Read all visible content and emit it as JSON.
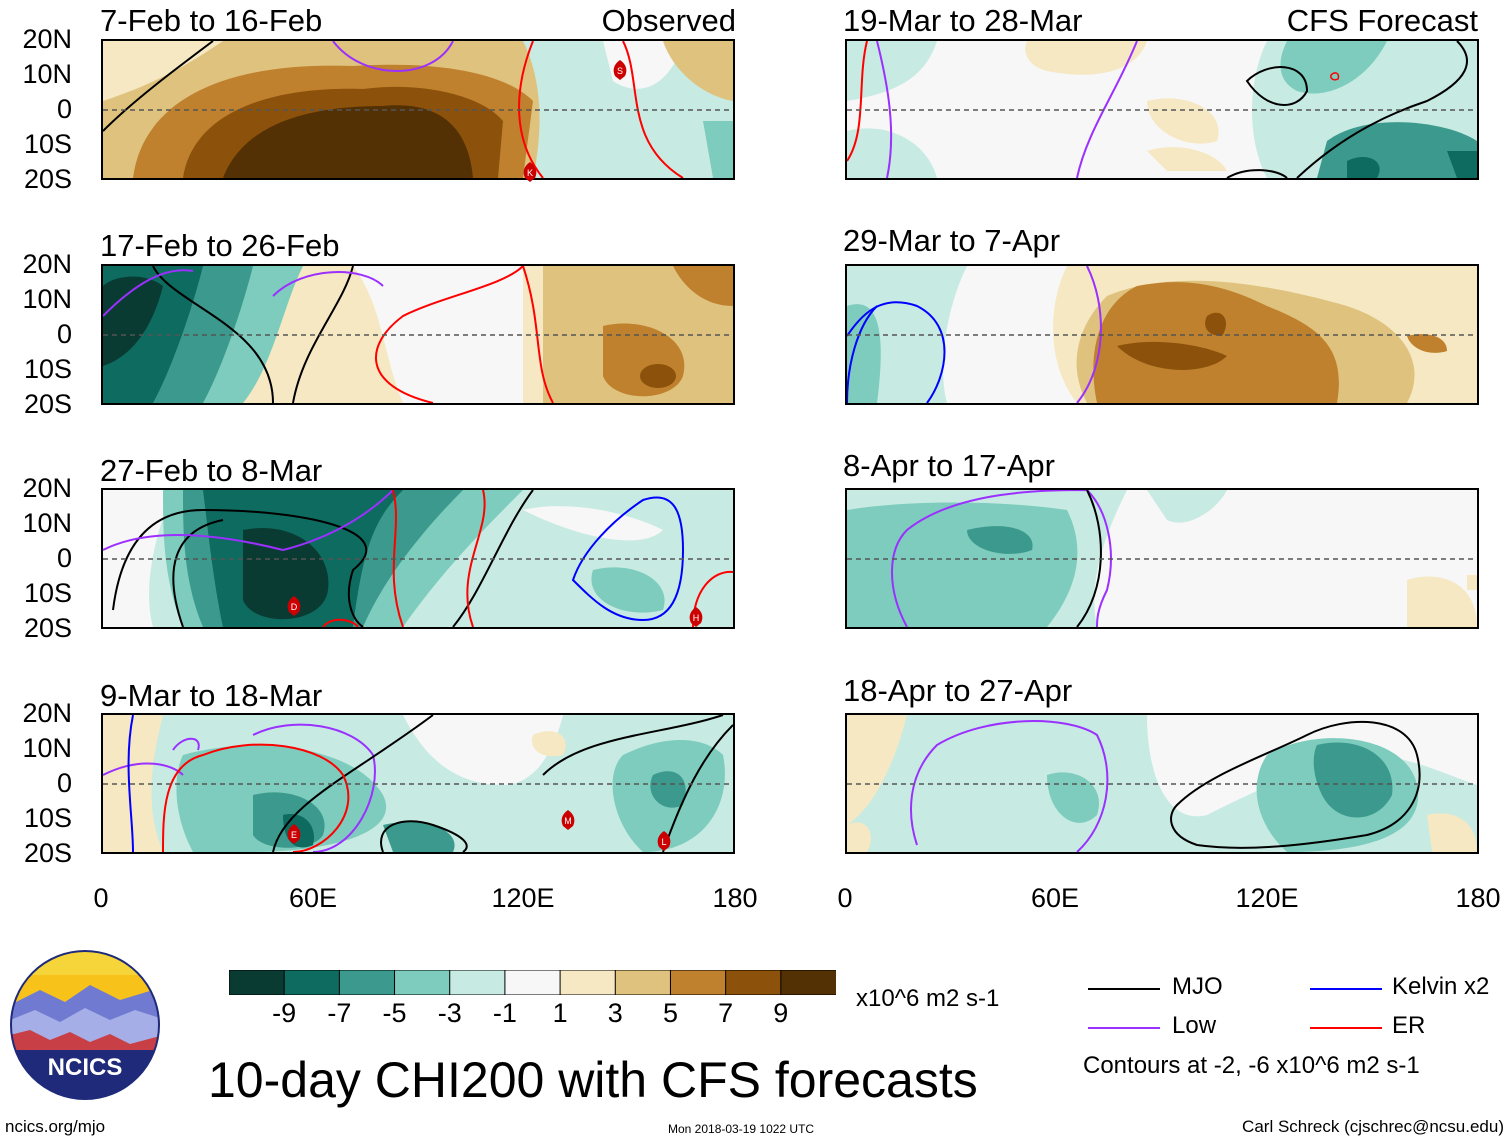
{
  "panels": [
    {
      "title": "7-Feb to 16-Feb",
      "tag": "Observed"
    },
    {
      "title": "17-Feb to 26-Feb",
      "tag": ""
    },
    {
      "title": "27-Feb to 8-Mar",
      "tag": ""
    },
    {
      "title": "9-Mar to 18-Mar",
      "tag": ""
    },
    {
      "title": "19-Mar to 28-Mar",
      "tag": "CFS Forecast"
    },
    {
      "title": "29-Mar to 7-Apr",
      "tag": ""
    },
    {
      "title": "8-Apr to 17-Apr",
      "tag": ""
    },
    {
      "title": "18-Apr to 27-Apr",
      "tag": ""
    }
  ],
  "lat_labels": [
    "20N",
    "10N",
    "0",
    "10S",
    "20S"
  ],
  "lon_labels": [
    "0",
    "60E",
    "120E",
    "180"
  ],
  "colorbar": {
    "colors": [
      "#0a3b33",
      "#0d6b60",
      "#3b9a8d",
      "#7dccbd",
      "#c7ebe2",
      "#f7f7f7",
      "#f6e8c3",
      "#dfc27d",
      "#bf812d",
      "#8c510a",
      "#543005"
    ],
    "labels": [
      "-9",
      "-7",
      "-5",
      "-3",
      "-1",
      "1",
      "3",
      "5",
      "7",
      "9"
    ],
    "units": "x10^6 m2 s-1"
  },
  "legend": {
    "items": [
      {
        "label": "MJO",
        "color": "#000000"
      },
      {
        "label": "Kelvin x2",
        "color": "#0000ff"
      },
      {
        "label": "Low",
        "color": "#9b30ff"
      },
      {
        "label": "ER",
        "color": "#ff0000"
      }
    ],
    "contours_note": "Contours at -2, -6 x10^6 m2 s-1"
  },
  "storm_markers": [
    {
      "panel": 0,
      "letter": "S"
    },
    {
      "panel": 0,
      "letter": "K"
    },
    {
      "panel": 2,
      "letter": "D"
    },
    {
      "panel": 2,
      "letter": "H"
    },
    {
      "panel": 3,
      "letter": "E"
    },
    {
      "panel": 3,
      "letter": "M"
    },
    {
      "panel": 3,
      "letter": "L"
    }
  ],
  "logo": {
    "text": "NCICS"
  },
  "main_title": "10-day CHI200 with CFS forecasts",
  "footer": {
    "website": "ncics.org/mjo",
    "timestamp": "Mon 2018-03-19 1022 UTC",
    "author": "Carl Schreck (cjschrec@ncsu.edu)"
  }
}
